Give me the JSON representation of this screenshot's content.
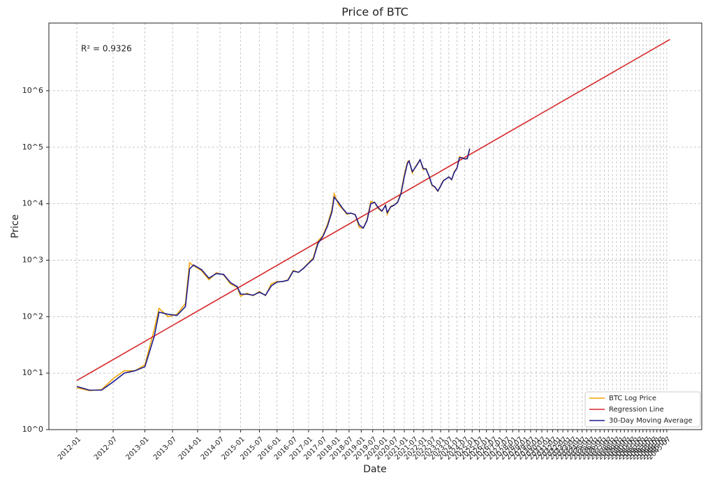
{
  "chart_data": {
    "type": "line",
    "title": "Price of BTC",
    "xlabel": "Date",
    "ylabel": "Price",
    "annotation": "R² = 0.9326",
    "xscale": "log",
    "yscale": "log",
    "grid": true,
    "legend": "lower right",
    "xlim": [
      "2011-09",
      "2051-05"
    ],
    "ylim": [
      1,
      15800000
    ],
    "yticks": [
      {
        "value": 1,
        "label": "10^0"
      },
      {
        "value": 10,
        "label": "10^1"
      },
      {
        "value": 100,
        "label": "10^2"
      },
      {
        "value": 1000,
        "label": "10^3"
      },
      {
        "value": 10000,
        "label": "10^4"
      },
      {
        "value": 100000,
        "label": "10^5"
      },
      {
        "value": 1000000,
        "label": "10^6"
      }
    ],
    "xticks": [
      "2012-01",
      "2012-07",
      "2013-01",
      "2013-07",
      "2014-01",
      "2014-07",
      "2015-01",
      "2015-07",
      "2016-01",
      "2016-07",
      "2017-01",
      "2017-07",
      "2018-01",
      "2018-07",
      "2019-01",
      "2019-07",
      "2020-01",
      "2020-07",
      "2021-01",
      "2021-07",
      "2022-01",
      "2022-07",
      "2023-01",
      "2023-07",
      "2024-01",
      "2024-07",
      "2025-01",
      "2025-07",
      "2026-01",
      "2026-07",
      "2027-01",
      "2027-07",
      "2028-01",
      "2028-07",
      "2029-01",
      "2029-07",
      "2030-01",
      "2030-07",
      "2031-01",
      "2031-07",
      "2032-01",
      "2032-07",
      "2033-01",
      "2033-07",
      "2034-01",
      "2034-07",
      "2035-01",
      "2035-07",
      "2036-01",
      "2036-07",
      "2037-01",
      "2037-07",
      "2038-01",
      "2038-07",
      "2039-01",
      "2039-07",
      "2040-01",
      "2040-07",
      "2041-01",
      "2041-07",
      "2042-01",
      "2042-07",
      "2043-01",
      "2043-07",
      "2044-01",
      "2044-07",
      "2045-01",
      "2045-07"
    ],
    "x": [
      "2012-01",
      "2012-03",
      "2012-05",
      "2012-07",
      "2012-09",
      "2012-11",
      "2013-01",
      "2013-03",
      "2013-04",
      "2013-06",
      "2013-08",
      "2013-10",
      "2013-11",
      "2013-12",
      "2014-02",
      "2014-04",
      "2014-06",
      "2014-08",
      "2014-10",
      "2014-12",
      "2015-01",
      "2015-03",
      "2015-05",
      "2015-07",
      "2015-09",
      "2015-11",
      "2016-01",
      "2016-03",
      "2016-05",
      "2016-07",
      "2016-09",
      "2016-11",
      "2017-01",
      "2017-03",
      "2017-05",
      "2017-07",
      "2017-09",
      "2017-11",
      "2017-12",
      "2018-02",
      "2018-04",
      "2018-06",
      "2018-08",
      "2018-10",
      "2018-12",
      "2019-02",
      "2019-04",
      "2019-06",
      "2019-08",
      "2019-10",
      "2019-12",
      "2020-02",
      "2020-03",
      "2020-05",
      "2020-07",
      "2020-09",
      "2020-11",
      "2021-01",
      "2021-03",
      "2021-04",
      "2021-06",
      "2021-08",
      "2021-10",
      "2021-11",
      "2022-01",
      "2022-03",
      "2022-05",
      "2022-07",
      "2022-09",
      "2022-11",
      "2023-01",
      "2023-03",
      "2023-05",
      "2023-07",
      "2023-09",
      "2023-11",
      "2024-01",
      "2024-03",
      "2024-05",
      "2024-07",
      "2024-09",
      "2024-11"
    ],
    "series": [
      {
        "name": "BTC Log Price",
        "color": "#f0a30a",
        "values": [
          5.5,
          4.9,
          5.1,
          8,
          11,
          11,
          14,
          60,
          140,
          100,
          110,
          170,
          900,
          800,
          650,
          450,
          600,
          550,
          380,
          330,
          230,
          260,
          235,
          280,
          235,
          380,
          420,
          415,
          450,
          660,
          605,
          730,
          900,
          1100,
          2200,
          2700,
          4300,
          8000,
          15000,
          9500,
          8000,
          6500,
          6800,
          6400,
          3800,
          3700,
          5200,
          11000,
          10500,
          8200,
          7300,
          9500,
          6500,
          9000,
          9500,
          10700,
          16000,
          33000,
          55000,
          58000,
          35000,
          45000,
          55000,
          60000,
          40000,
          42000,
          30000,
          21000,
          19500,
          16500,
          21000,
          26000,
          27500,
          30000,
          26500,
          37000,
          43000,
          68000,
          65000,
          62000,
          63000,
          95000
        ]
      },
      {
        "name": "30-Day Moving Average",
        "color": "#1c1c8c",
        "values": [
          5.8,
          5,
          5,
          7,
          10,
          11,
          13,
          45,
          120,
          110,
          105,
          150,
          700,
          820,
          680,
          480,
          580,
          560,
          400,
          340,
          250,
          250,
          240,
          270,
          240,
          350,
          410,
          420,
          440,
          640,
          610,
          720,
          880,
          1050,
          2000,
          2600,
          4000,
          7200,
          13000,
          10500,
          8200,
          6700,
          6800,
          6400,
          4200,
          3700,
          5000,
          10000,
          10600,
          8500,
          7400,
          9300,
          7000,
          8800,
          9400,
          10600,
          15000,
          30000,
          52000,
          57000,
          37000,
          44000,
          54000,
          60000,
          42000,
          41000,
          31000,
          21500,
          19800,
          16800,
          20500,
          25500,
          27500,
          29800,
          26800,
          36000,
          42500,
          65000,
          65000,
          62000,
          62500,
          94000
        ]
      },
      {
        "name": "Regression Line",
        "color": "#d62728",
        "x": [
          "2012-01",
          "2046-01"
        ],
        "values": [
          7.4,
          8100000
        ]
      }
    ]
  }
}
